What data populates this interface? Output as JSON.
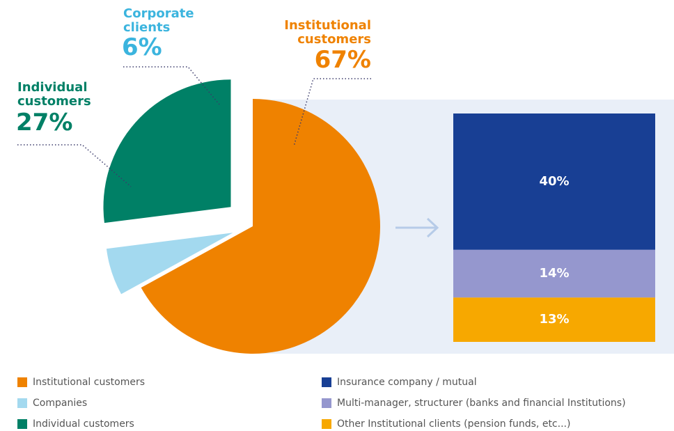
{
  "chart_data": [
    {
      "type": "pie",
      "categories": [
        "Institutional customers",
        "Companies",
        "Individual customers"
      ],
      "labels": [
        "Institutional customers",
        "Corporate clients",
        "Individual customers"
      ],
      "values": [
        67,
        6,
        27
      ],
      "value_labels": [
        "67%",
        "6%",
        "27%"
      ],
      "colors": [
        "#ef8200",
        "#a3d9ef",
        "#008066"
      ]
    },
    {
      "type": "bar",
      "stacked": true,
      "series": [
        {
          "name": "Insurance company / mutual",
          "color": "#183f94",
          "values": [
            40
          ],
          "value_labels": [
            "40%"
          ]
        },
        {
          "name": "Multi-manager, structurer (banks and financial Institutions)",
          "color": "#9597ce",
          "values": [
            14
          ],
          "value_labels": [
            "14%"
          ]
        },
        {
          "name": "Other Institutional clients (pension funds, etc...)",
          "color": "#f7a800",
          "values": [
            13
          ],
          "value_labels": [
            "13%"
          ]
        }
      ]
    }
  ]
}
